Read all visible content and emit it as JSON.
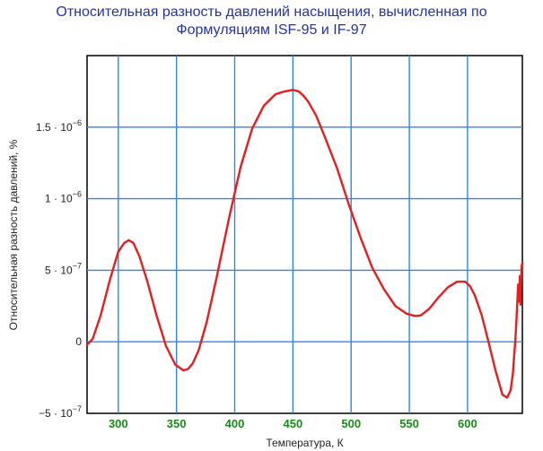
{
  "chart_data": {
    "type": "line",
    "title_lines": [
      "Относительная разность давлений насыщения, вычисленная по",
      "Формуляциям ISF-95 и IF-97"
    ],
    "xlabel": "Температура, К",
    "ylabel": "Относительная разность давлений, %",
    "xlim": [
      273.16,
      647.1
    ],
    "ylim": [
      -5e-07,
      2e-06
    ],
    "x_ticks": [
      {
        "value": 300,
        "label": "300"
      },
      {
        "value": 350,
        "label": "350"
      },
      {
        "value": 400,
        "label": "400"
      },
      {
        "value": 450,
        "label": "450"
      },
      {
        "value": 500,
        "label": "500"
      },
      {
        "value": 550,
        "label": "550"
      },
      {
        "value": 600,
        "label": "600"
      }
    ],
    "y_ticks": [
      {
        "value": 1.5e-06,
        "mantissa": "1.5 · 10",
        "exponent": "−6"
      },
      {
        "value": 1e-06,
        "mantissa": "1 · 10",
        "exponent": "−6"
      },
      {
        "value": 5e-07,
        "mantissa": "5 · 10",
        "exponent": "−7"
      },
      {
        "value": 0,
        "mantissa": "0",
        "exponent": ""
      },
      {
        "value": -5e-07,
        "mantissa": "−5 · 10",
        "exponent": "−7"
      }
    ],
    "grid": true,
    "grid_color": "#2f86e6",
    "series": [
      {
        "color": "#e61e1e",
        "x": [
          273.16,
          278,
          285,
          293,
          300,
          305,
          309,
          313,
          318,
          325,
          333,
          341,
          349,
          356,
          360,
          364,
          369,
          376,
          385,
          395,
          405,
          415,
          425,
          435,
          443,
          450,
          455,
          459,
          463,
          470,
          478,
          488,
          498,
          508,
          518,
          528,
          538,
          548,
          555,
          560,
          567,
          575,
          583,
          591,
          598,
          602,
          606,
          612,
          618,
          624,
          630,
          634,
          637,
          639,
          640,
          641,
          642,
          643,
          643.5,
          644,
          644.5,
          645,
          645.5,
          646,
          646.5,
          647.1
        ],
        "y": [
          -2e-08,
          2e-08,
          1.9e-07,
          4.4e-07,
          6.3e-07,
          6.9e-07,
          7.1e-07,
          6.9e-07,
          6e-07,
          4.2e-07,
          1.8e-07,
          -3e-08,
          -1.6e-07,
          -2e-07,
          -1.9e-07,
          -1.5e-07,
          -6e-08,
          1.4e-07,
          4.7e-07,
          8.6e-07,
          1.22e-06,
          1.49e-06,
          1.65e-06,
          1.73e-06,
          1.75e-06,
          1.76e-06,
          1.75e-06,
          1.72e-06,
          1.68e-06,
          1.58e-06,
          1.42e-06,
          1.21e-06,
          9.6e-07,
          7.3e-07,
          5.2e-07,
          3.7e-07,
          2.5e-07,
          1.95e-07,
          1.8e-07,
          1.85e-07,
          2.3e-07,
          3.1e-07,
          3.8e-07,
          4.2e-07,
          4.2e-07,
          3.9e-07,
          3.3e-07,
          1.9e-07,
          0.0,
          -2e-07,
          -3.7e-07,
          -3.9e-07,
          -3.4e-07,
          -2.2e-07,
          -1e-07,
          0.0,
          1.5e-07,
          3.2e-07,
          4e-07,
          2.8e-07,
          3.5e-07,
          4.6e-07,
          2.6e-07,
          4e-07,
          5.3e-07,
          5.5e-07
        ]
      }
    ]
  }
}
